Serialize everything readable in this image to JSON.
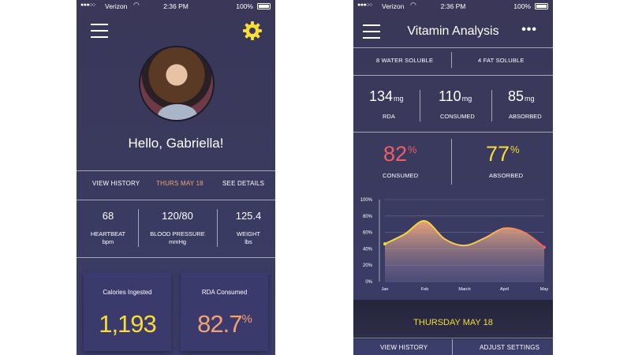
{
  "status_bar": {
    "carrier": "Verizon",
    "time": "2:36 PM",
    "battery": "100%"
  },
  "left": {
    "greeting": "Hello, Gabriella!",
    "tabs": {
      "history": "VIEW HISTORY",
      "date": "THURS MAY 18",
      "details": "SEE DETAILS"
    },
    "metrics": [
      {
        "value": "68",
        "label": "HEARTBEAT",
        "unit": "bpm"
      },
      {
        "value": "120/80",
        "label": "BLOOD PRESSURE",
        "unit": "mmHg"
      },
      {
        "value": "125.4",
        "label": "WEIGHT",
        "unit": "lbs"
      }
    ],
    "cards": [
      {
        "title": "Calories Ingested",
        "value": "1,193",
        "suffix": ""
      },
      {
        "title": "RDA Consumed",
        "value": "82.7",
        "suffix": "%"
      }
    ]
  },
  "right": {
    "title": "Vitamin Analysis",
    "solubility": {
      "water": "8 WATER SOLUBLE",
      "fat": "4 FAT SOLUBLE"
    },
    "amounts": [
      {
        "value": "134",
        "unit": "mg",
        "label": "RDA"
      },
      {
        "value": "110",
        "unit": "mg",
        "label": "CONSUMED"
      },
      {
        "value": "85",
        "unit": "mg",
        "label": "ABSORBED"
      }
    ],
    "percents": [
      {
        "value": "82",
        "label": "CONSUMED"
      },
      {
        "value": "77",
        "label": "ABSORBED"
      }
    ],
    "date_label": "THURSDAY MAY 18",
    "bottom_nav": {
      "history": "VIEW HISTORY",
      "settings": "ADJUST SETTINGS"
    }
  },
  "colors": {
    "accent_yellow": "#f6dd37",
    "accent_orange": "#f0a370",
    "accent_red": "#ef5e64",
    "background": "#3a3a5e"
  },
  "icons": [
    "hamburger-menu-icon",
    "gear-icon",
    "more-dots-icon",
    "wifi-icon",
    "battery-icon"
  ],
  "chart_data": {
    "type": "area",
    "categories": [
      "Jan",
      "Feb",
      "March",
      "April",
      "May"
    ],
    "y_ticks": [
      "100%",
      "80%",
      "60%",
      "40%",
      "20%",
      "0%"
    ],
    "ylim": [
      0,
      100
    ],
    "x": [
      0,
      0.5,
      1,
      1.5,
      2,
      2.5,
      3,
      3.5,
      4
    ],
    "values": [
      46,
      58,
      74,
      52,
      44,
      53,
      65,
      60,
      42
    ],
    "grid": true
  }
}
